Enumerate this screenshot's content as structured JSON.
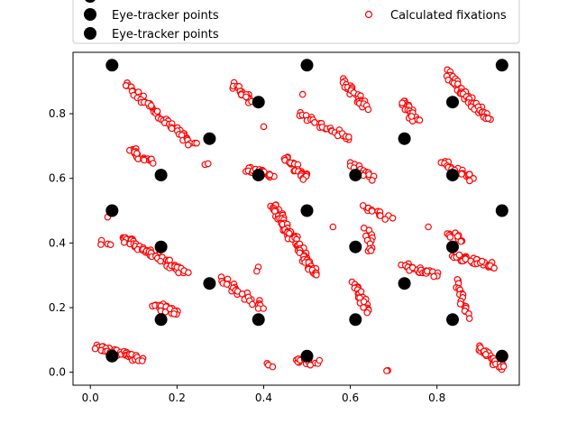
{
  "chart_data": {
    "type": "scatter",
    "title": "",
    "xlabel": "",
    "ylabel": "",
    "xlim": [
      -0.04,
      0.99
    ],
    "ylim": [
      -0.04,
      0.99
    ],
    "xticks": [
      0.0,
      0.2,
      0.4,
      0.6,
      0.8
    ],
    "yticks": [
      0.0,
      0.2,
      0.4,
      0.6,
      0.8
    ],
    "xtick_labels": [
      "0.0",
      "0.2",
      "0.4",
      "0.6",
      "0.8"
    ],
    "ytick_labels": [
      "0.0",
      "0.2",
      "0.4",
      "0.6",
      "0.8"
    ],
    "grid": false,
    "legend": {
      "placement": "top",
      "entries": [
        {
          "label": "Eye-tracker points",
          "marker": "filled-circle"
        },
        {
          "label": "Eye-tracker points",
          "marker": "filled-circle"
        },
        {
          "label": "Calculated fixations",
          "marker": "hollow-circle"
        }
      ]
    },
    "colors": {
      "calibration": "#000000",
      "fixation": "#ff0000"
    },
    "series": [
      {
        "name": "Eye-tracker points",
        "style": "filled",
        "points": [
          [
            0.05,
            0.95
          ],
          [
            0.5,
            0.95
          ],
          [
            0.95,
            0.95
          ],
          [
            0.388,
            0.836
          ],
          [
            0.836,
            0.836
          ],
          [
            0.275,
            0.723
          ],
          [
            0.725,
            0.723
          ],
          [
            0.163,
            0.61
          ],
          [
            0.388,
            0.61
          ],
          [
            0.612,
            0.61
          ],
          [
            0.836,
            0.61
          ],
          [
            0.05,
            0.5
          ],
          [
            0.5,
            0.5
          ],
          [
            0.95,
            0.5
          ],
          [
            0.163,
            0.388
          ],
          [
            0.612,
            0.388
          ],
          [
            0.836,
            0.388
          ],
          [
            0.275,
            0.275
          ],
          [
            0.725,
            0.275
          ],
          [
            0.163,
            0.163
          ],
          [
            0.388,
            0.163
          ],
          [
            0.612,
            0.163
          ],
          [
            0.836,
            0.163
          ],
          [
            0.05,
            0.05
          ],
          [
            0.5,
            0.05
          ],
          [
            0.95,
            0.05
          ]
        ]
      },
      {
        "name": "Calculated fixations",
        "style": "hollow",
        "clusters": [
          {
            "from": [
              0.08,
              0.89
            ],
            "to": [
              0.24,
              0.7
            ],
            "n": 60
          },
          {
            "from": [
              0.33,
              0.89
            ],
            "to": [
              0.37,
              0.84
            ],
            "n": 20
          },
          {
            "from": [
              0.4,
              0.76
            ],
            "to": [
              0.4,
              0.76
            ],
            "n": 1
          },
          {
            "from": [
              0.49,
              0.86
            ],
            "to": [
              0.49,
              0.86
            ],
            "n": 1
          },
          {
            "from": [
              0.48,
              0.8
            ],
            "to": [
              0.6,
              0.72
            ],
            "n": 30
          },
          {
            "from": [
              0.58,
              0.9
            ],
            "to": [
              0.64,
              0.82
            ],
            "n": 28
          },
          {
            "from": [
              0.72,
              0.84
            ],
            "to": [
              0.75,
              0.78
            ],
            "n": 20
          },
          {
            "from": [
              0.76,
              0.78
            ],
            "to": [
              0.76,
              0.78
            ],
            "n": 1
          },
          {
            "from": [
              0.82,
              0.93
            ],
            "to": [
              0.92,
              0.78
            ],
            "n": 55
          },
          {
            "from": [
              0.09,
              0.69
            ],
            "to": [
              0.14,
              0.65
            ],
            "n": 20
          },
          {
            "from": [
              0.26,
              0.65
            ],
            "to": [
              0.27,
              0.65
            ],
            "n": 2
          },
          {
            "from": [
              0.36,
              0.63
            ],
            "to": [
              0.42,
              0.61
            ],
            "n": 28
          },
          {
            "from": [
              0.45,
              0.66
            ],
            "to": [
              0.5,
              0.6
            ],
            "n": 26
          },
          {
            "from": [
              0.6,
              0.64
            ],
            "to": [
              0.65,
              0.6
            ],
            "n": 18
          },
          {
            "from": [
              0.81,
              0.65
            ],
            "to": [
              0.88,
              0.6
            ],
            "n": 25
          },
          {
            "from": [
              0.04,
              0.48
            ],
            "to": [
              0.04,
              0.48
            ],
            "n": 1
          },
          {
            "from": [
              0.07,
              0.42
            ],
            "to": [
              0.22,
              0.31
            ],
            "n": 70
          },
          {
            "from": [
              0.42,
              0.52
            ],
            "to": [
              0.52,
              0.3
            ],
            "n": 90
          },
          {
            "from": [
              0.56,
              0.45
            ],
            "to": [
              0.56,
              0.45
            ],
            "n": 1
          },
          {
            "from": [
              0.63,
              0.51
            ],
            "to": [
              0.69,
              0.48
            ],
            "n": 14
          },
          {
            "from": [
              0.64,
              0.44
            ],
            "to": [
              0.65,
              0.37
            ],
            "n": 12
          },
          {
            "from": [
              0.78,
              0.45
            ],
            "to": [
              0.78,
              0.45
            ],
            "n": 1
          },
          {
            "from": [
              0.83,
              0.43
            ],
            "to": [
              0.86,
              0.41
            ],
            "n": 12
          },
          {
            "from": [
              0.72,
              0.33
            ],
            "to": [
              0.8,
              0.3
            ],
            "n": 30
          },
          {
            "from": [
              0.84,
              0.36
            ],
            "to": [
              0.93,
              0.33
            ],
            "n": 35
          },
          {
            "from": [
              0.38,
              0.33
            ],
            "to": [
              0.38,
              0.31
            ],
            "n": 2
          },
          {
            "from": [
              0.02,
              0.4
            ],
            "to": [
              0.05,
              0.39
            ],
            "n": 4
          },
          {
            "from": [
              0.3,
              0.29
            ],
            "to": [
              0.4,
              0.2
            ],
            "n": 30
          },
          {
            "from": [
              0.15,
              0.21
            ],
            "to": [
              0.2,
              0.18
            ],
            "n": 22
          },
          {
            "from": [
              0.61,
              0.28
            ],
            "to": [
              0.64,
              0.19
            ],
            "n": 22
          },
          {
            "from": [
              0.84,
              0.29
            ],
            "to": [
              0.87,
              0.17
            ],
            "n": 20
          },
          {
            "from": [
              0.01,
              0.08
            ],
            "to": [
              0.12,
              0.04
            ],
            "n": 40
          },
          {
            "from": [
              0.41,
              0.02
            ],
            "to": [
              0.42,
              0.02
            ],
            "n": 3
          },
          {
            "from": [
              0.47,
              0.04
            ],
            "to": [
              0.52,
              0.03
            ],
            "n": 20
          },
          {
            "from": [
              0.69,
              0.0
            ],
            "to": [
              0.69,
              0.0
            ],
            "n": 2
          },
          {
            "from": [
              0.9,
              0.08
            ],
            "to": [
              0.95,
              0.01
            ],
            "n": 30
          }
        ]
      }
    ]
  }
}
